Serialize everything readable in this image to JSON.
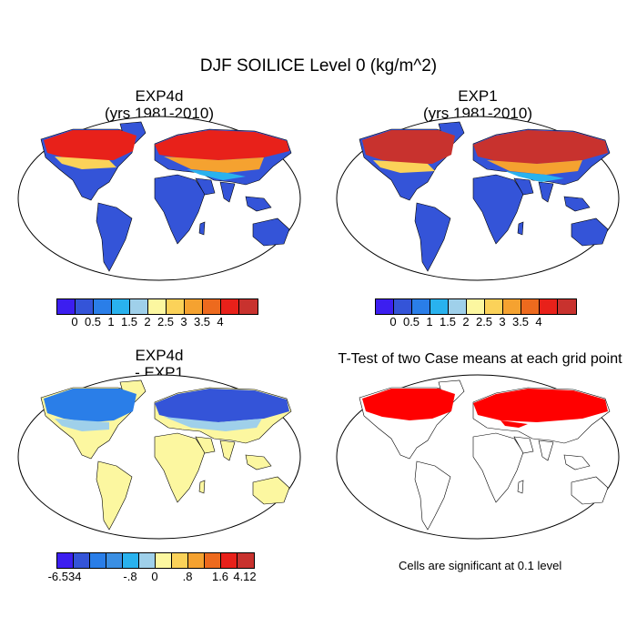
{
  "title": "DJF SOILICE Level 0 (kg/m^2)",
  "panels": [
    {
      "title": "EXP4d\n(yrs 1981-2010)"
    },
    {
      "title": "EXP1\n(yrs 1981-2010)"
    },
    {
      "title": "EXP4d\n- EXP1"
    },
    {
      "title": "T-Test of two Case means at each grid point"
    }
  ],
  "colorbars": {
    "top": {
      "colors": [
        "#3c1ef0",
        "#3454d8",
        "#2a7ee8",
        "#29b2ee",
        "#9fd0ea",
        "#fcf7a0",
        "#fbd259",
        "#f5a230",
        "#ed6a1e",
        "#e8211a",
        "#c8322e"
      ],
      "labels": [
        "0",
        "0.5",
        "1",
        "1.5",
        "2",
        "2.5",
        "3",
        "3.5",
        "4"
      ]
    },
    "diff": {
      "colors": [
        "#3c1ef0",
        "#3454d8",
        "#2a7ee8",
        "#3b8fe3",
        "#29b2ee",
        "#9fd0ea",
        "#fcf7a0",
        "#fbd259",
        "#f5a230",
        "#ed6a1e",
        "#e8211a",
        "#c8322e"
      ],
      "labels": [
        "-6.534",
        "-.8",
        "0",
        ".8",
        "1.6",
        "4.12"
      ]
    }
  },
  "note": "Cells are significant at 0.1 level",
  "colors": {
    "ocean": "#ffffff",
    "land_warm": "#3454d8",
    "frozen_high": "#e8211a",
    "diff_land": "#fcf7a0",
    "signif": "#ff0000"
  }
}
